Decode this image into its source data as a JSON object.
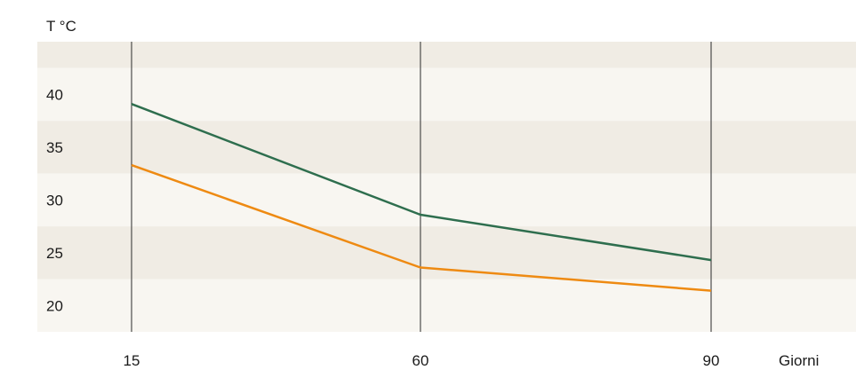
{
  "chart_data": {
    "type": "line",
    "title": "",
    "ylabel": "T °C",
    "xlabel": "Giorni",
    "x": [
      15,
      60,
      90
    ],
    "x_ticks": [
      "15",
      "60",
      "90"
    ],
    "y_ticks": [
      20,
      25,
      30,
      35,
      40
    ],
    "ylim": [
      17.5,
      45
    ],
    "grid": "vertical lines at x ticks; alternating horizontal bands every 5 °C",
    "legend": "none",
    "series": [
      {
        "values": [
          39.1,
          28.6,
          24.3
        ],
        "color": "#2e6e4e"
      },
      {
        "values": [
          33.3,
          23.6,
          21.4
        ],
        "color": "#ee8a12"
      }
    ],
    "band_colors": [
      "#f0ece4",
      "#f8f6f1"
    ]
  }
}
